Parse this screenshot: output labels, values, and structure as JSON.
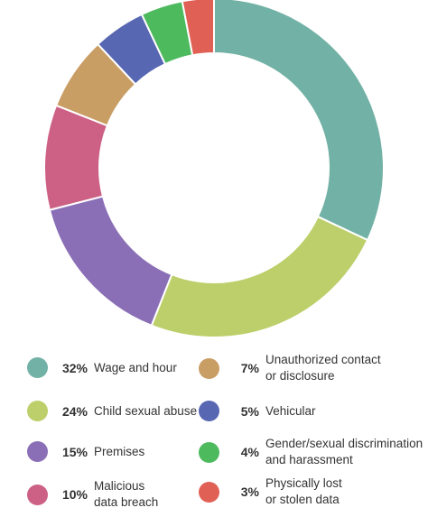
{
  "chart_data": {
    "type": "pie",
    "style": "donut",
    "slices": [
      {
        "label": "Wage and hour",
        "pct_label": "32%",
        "value": 32,
        "color": "#72b1a5"
      },
      {
        "label": "Child sexual abuse",
        "pct_label": "24%",
        "value": 24,
        "color": "#bccf6a"
      },
      {
        "label": "Premises",
        "pct_label": "15%",
        "value": 15,
        "color": "#8a6fb6"
      },
      {
        "label": "Malicious\ndata breach",
        "pct_label": "10%",
        "value": 10,
        "color": "#cc6185"
      },
      {
        "label": "Unauthorized contact\nor disclosure",
        "pct_label": "7%",
        "value": 7,
        "color": "#c99e65"
      },
      {
        "label": "Vehicular",
        "pct_label": "5%",
        "value": 5,
        "color": "#5767b2"
      },
      {
        "label": "Gender/sexual discrimination\nand harassment",
        "pct_label": "4%",
        "value": 4,
        "color": "#4dba5e"
      },
      {
        "label": "Physically lost\nor stolen data",
        "pct_label": "3%",
        "value": 3,
        "color": "#e06055"
      }
    ],
    "legend_position": "bottom"
  }
}
